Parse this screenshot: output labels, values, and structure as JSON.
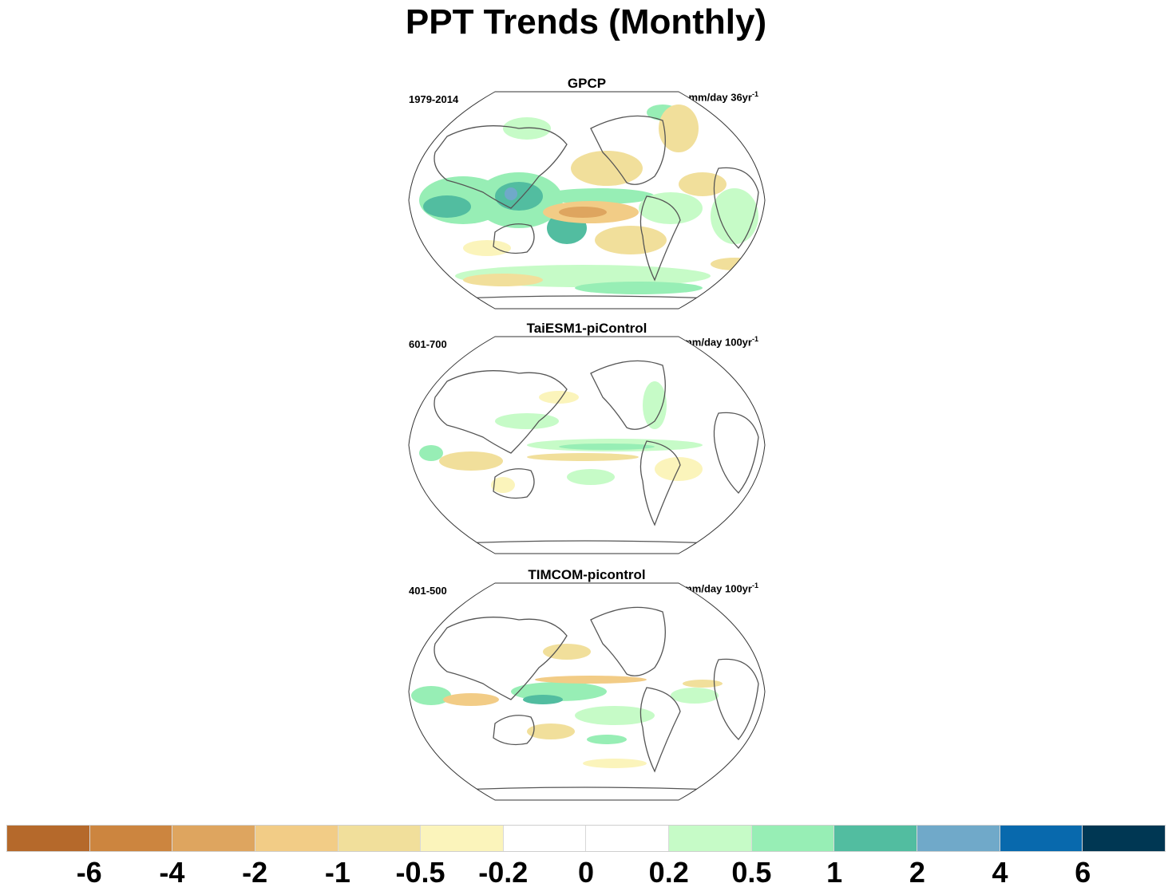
{
  "title": "PPT Trends (Monthly)",
  "panels": [
    {
      "title": "GPCP",
      "period": "1979-2014",
      "units_base": "mm/day 36yr",
      "units_sup": "-1"
    },
    {
      "title": "TaiESM1-piControl",
      "period": "601-700",
      "units_base": "mm/day 100yr",
      "units_sup": "-1"
    },
    {
      "title": "TIMCOM-picontrol",
      "period": "401-500",
      "units_base": "mm/day 100yr",
      "units_sup": "-1"
    }
  ],
  "colorbar": {
    "colors": [
      "#b5692b",
      "#cc853f",
      "#dea55f",
      "#f2cc86",
      "#f1df9b",
      "#fbf4bb",
      "#ffffff",
      "#ffffff",
      "#c6fbc7",
      "#97eeb5",
      "#52bda0",
      "#70a9c9",
      "#0869ad",
      "#003753"
    ],
    "labels": [
      "-6",
      "-4",
      "-2",
      "-1",
      "-0.5",
      "-0.2",
      "0",
      "0.2",
      "0.5",
      "1",
      "2",
      "4",
      "6"
    ]
  }
}
